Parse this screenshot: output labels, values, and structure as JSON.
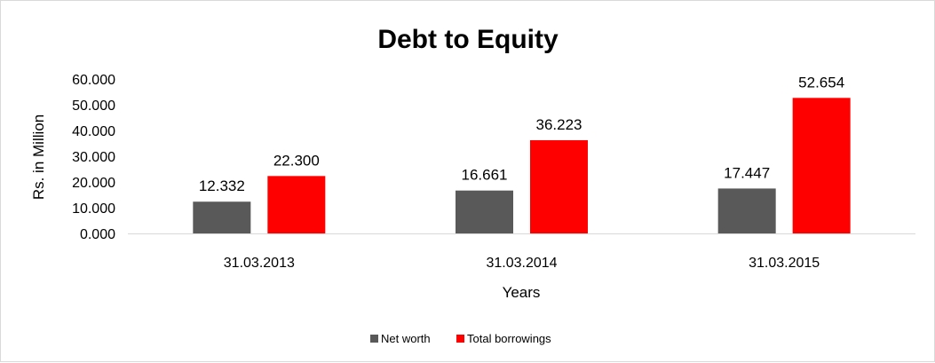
{
  "chart_data": {
    "type": "bar",
    "title": "Debt to Equity",
    "xlabel": "Years",
    "ylabel": "Rs. in Million",
    "categories": [
      "31.03.2013",
      "31.03.2014",
      "31.03.2015"
    ],
    "series": [
      {
        "name": "Net worth",
        "values": [
          12.332,
          16.661,
          17.447
        ],
        "color": "#595959"
      },
      {
        "name": "Total borrowings",
        "values": [
          22.3,
          36.223,
          52.654
        ],
        "color": "#ff0000"
      }
    ],
    "data_labels": [
      [
        "12.332",
        "16.661",
        "17.447"
      ],
      [
        "22.300",
        "36.223",
        "52.654"
      ]
    ],
    "ylim": [
      0,
      60
    ],
    "yticks": [
      0,
      10,
      20,
      30,
      40,
      50,
      60
    ],
    "ytick_labels": [
      "0.000",
      "10.000",
      "20.000",
      "30.000",
      "40.000",
      "50.000",
      "60.000"
    ],
    "grid": false,
    "legend_position": "bottom"
  }
}
